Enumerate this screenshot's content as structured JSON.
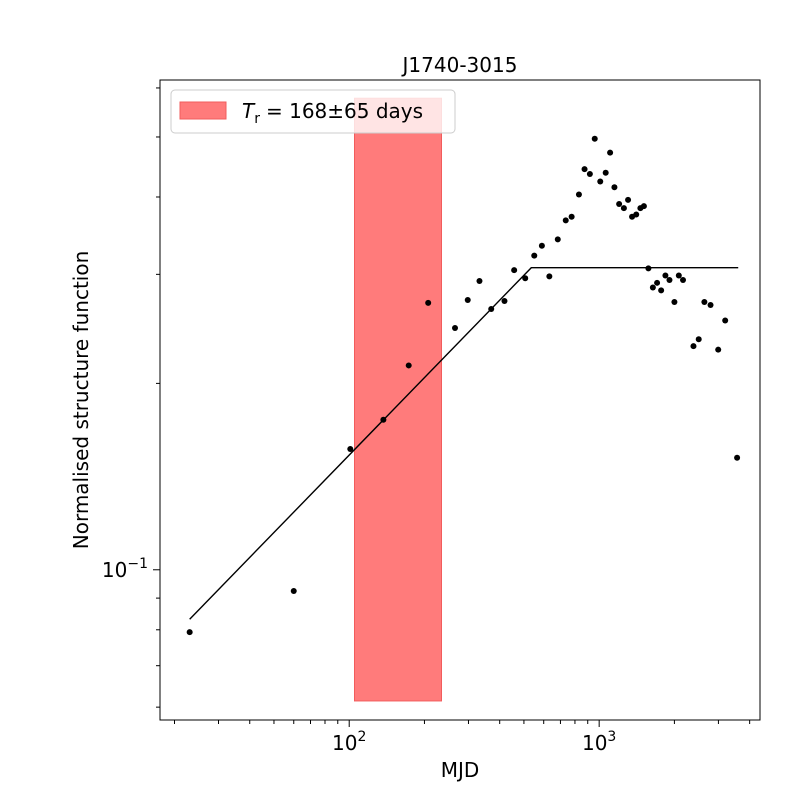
{
  "chart_data": {
    "type": "scatter",
    "title": "J1740-3015",
    "xlabel": "MJD",
    "ylabel": "Normalised structure function",
    "xscale": "log",
    "yscale": "log",
    "xlim": [
      17.5,
      4400
    ],
    "ylim": [
      0.0572,
      0.618
    ],
    "grid": false,
    "x_ticks": [
      {
        "value": 100,
        "base": "10",
        "exp": "2"
      },
      {
        "value": 1000,
        "base": "10",
        "exp": "3"
      }
    ],
    "y_ticks": [
      {
        "value": 0.1,
        "base": "10",
        "exp": "−1"
      }
    ],
    "legend": {
      "position": "top-left",
      "text": "= 168±65 days",
      "symbol": "T",
      "symbol_sub": "r",
      "color": "#ff7b7b"
    },
    "band": {
      "x_range": [
        105,
        234
      ],
      "y_range": [
        0.0614,
        0.5775
      ],
      "center": 168,
      "error": 65,
      "unit": "days",
      "color": "#ff7b7b",
      "edge_color": "#f25c5c"
    },
    "model_line": {
      "color": "#000000",
      "points": [
        [
          23,
          0.0832
        ],
        [
          535,
          0.3075
        ],
        [
          3600,
          0.3075
        ]
      ]
    },
    "points": [
      [
        23,
        0.0793
      ],
      [
        60,
        0.0924
      ],
      [
        101,
        0.1567
      ],
      [
        137,
        0.1747
      ],
      [
        173,
        0.2138
      ],
      [
        207,
        0.2698
      ],
      [
        265,
        0.2457
      ],
      [
        298,
        0.2727
      ],
      [
        332,
        0.2927
      ],
      [
        370,
        0.2637
      ],
      [
        418,
        0.2717
      ],
      [
        457,
        0.3047
      ],
      [
        506,
        0.2957
      ],
      [
        550,
        0.3217
      ],
      [
        590,
        0.3337
      ],
      [
        632,
        0.2977
      ],
      [
        683,
        0.3417
      ],
      [
        735,
        0.3667
      ],
      [
        776,
        0.3717
      ],
      [
        830,
        0.4037
      ],
      [
        874,
        0.4437
      ],
      [
        918,
        0.4357
      ],
      [
        960,
        0.4967
      ],
      [
        1010,
        0.4237
      ],
      [
        1062,
        0.4377
      ],
      [
        1106,
        0.4717
      ],
      [
        1151,
        0.4147
      ],
      [
        1202,
        0.3897
      ],
      [
        1256,
        0.3837
      ],
      [
        1305,
        0.3957
      ],
      [
        1354,
        0.3717
      ],
      [
        1407,
        0.3747
      ],
      [
        1462,
        0.3837
      ],
      [
        1510,
        0.3867
      ],
      [
        1574,
        0.3067
      ],
      [
        1640,
        0.2857
      ],
      [
        1705,
        0.2907
      ],
      [
        1770,
        0.2827
      ],
      [
        1841,
        0.2987
      ],
      [
        1911,
        0.2937
      ],
      [
        2000,
        0.2707
      ],
      [
        2083,
        0.2987
      ],
      [
        2165,
        0.2937
      ],
      [
        2384,
        0.2297
      ],
      [
        2502,
        0.2357
      ],
      [
        2636,
        0.2707
      ],
      [
        2790,
        0.2677
      ],
      [
        2994,
        0.2267
      ],
      [
        3193,
        0.2527
      ],
      [
        3563,
        0.1517
      ]
    ],
    "point_color": "#000000"
  }
}
